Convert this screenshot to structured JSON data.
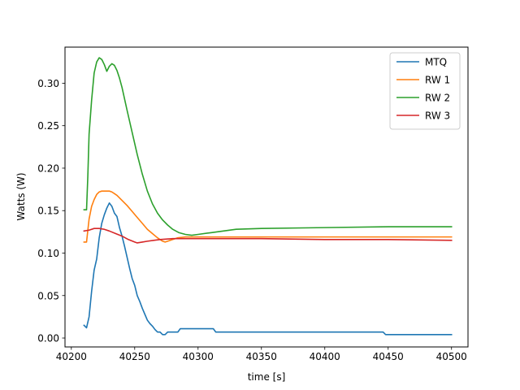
{
  "chart_data": {
    "type": "line",
    "title": "",
    "xlabel": "time [s]",
    "ylabel": "Watts (W)",
    "xlim": [
      40195,
      40513
    ],
    "ylim": [
      -0.0105,
      0.3425
    ],
    "xticks": [
      40200,
      40250,
      40300,
      40350,
      40400,
      40450,
      40500
    ],
    "xtick_labels": [
      "40200",
      "40250",
      "40300",
      "40350",
      "40400",
      "40450",
      "40500"
    ],
    "yticks": [
      0.0,
      0.05,
      0.1,
      0.15,
      0.2,
      0.25,
      0.3
    ],
    "ytick_labels": [
      "0.00",
      "0.05",
      "0.10",
      "0.15",
      "0.20",
      "0.25",
      "0.30"
    ],
    "grid": false,
    "legend_position": "top-right",
    "series": [
      {
        "name": "MTQ",
        "color": "#1f77b4",
        "x": [
          40210,
          40212,
          40214,
          40216,
          40218,
          40220,
          40222,
          40224,
          40226,
          40228,
          40230,
          40232,
          40234,
          40236,
          40238,
          40240,
          40242,
          40244,
          40246,
          40248,
          40250,
          40252,
          40254,
          40256,
          40258,
          40260,
          40262,
          40264,
          40266,
          40268,
          40270,
          40272,
          40274,
          40276,
          40278,
          40280,
          40282,
          40284,
          40286,
          40288,
          40290,
          40300,
          40310,
          40312,
          40314,
          40316,
          40330,
          40350,
          40400,
          40446,
          40448,
          40450,
          40500
        ],
        "y": [
          0.015,
          0.012,
          0.025,
          0.055,
          0.08,
          0.093,
          0.118,
          0.135,
          0.145,
          0.153,
          0.159,
          0.155,
          0.147,
          0.143,
          0.13,
          0.12,
          0.108,
          0.095,
          0.082,
          0.07,
          0.062,
          0.05,
          0.043,
          0.035,
          0.028,
          0.021,
          0.017,
          0.014,
          0.01,
          0.007,
          0.007,
          0.004,
          0.004,
          0.007,
          0.007,
          0.007,
          0.007,
          0.007,
          0.011,
          0.011,
          0.011,
          0.011,
          0.011,
          0.011,
          0.007,
          0.007,
          0.007,
          0.007,
          0.007,
          0.007,
          0.004,
          0.004,
          0.004
        ]
      },
      {
        "name": "RW 1",
        "color": "#ff7f0e",
        "x": [
          40210,
          40212,
          40214,
          40216,
          40218,
          40220,
          40222,
          40224,
          40226,
          40228,
          40230,
          40232,
          40234,
          40236,
          40238,
          40240,
          40244,
          40248,
          40252,
          40256,
          40260,
          40264,
          40268,
          40272,
          40274,
          40276,
          40280,
          40284,
          40290,
          40300,
          40350,
          40400,
          40450,
          40500
        ],
        "y": [
          0.113,
          0.113,
          0.14,
          0.155,
          0.163,
          0.169,
          0.172,
          0.173,
          0.173,
          0.173,
          0.173,
          0.172,
          0.17,
          0.168,
          0.165,
          0.162,
          0.156,
          0.149,
          0.142,
          0.135,
          0.128,
          0.123,
          0.118,
          0.114,
          0.113,
          0.114,
          0.116,
          0.118,
          0.119,
          0.119,
          0.119,
          0.119,
          0.119,
          0.119
        ]
      },
      {
        "name": "RW 2",
        "color": "#2ca02c",
        "x": [
          40210,
          40212,
          40213,
          40214,
          40216,
          40218,
          40220,
          40222,
          40224,
          40226,
          40228,
          40230,
          40232,
          40234,
          40236,
          40238,
          40240,
          40244,
          40248,
          40252,
          40256,
          40260,
          40264,
          40268,
          40272,
          40276,
          40280,
          40285,
          40290,
          40295,
          40300,
          40310,
          40320,
          40330,
          40350,
          40400,
          40450,
          40500
        ],
        "y": [
          0.151,
          0.151,
          0.19,
          0.24,
          0.28,
          0.312,
          0.325,
          0.33,
          0.328,
          0.322,
          0.314,
          0.32,
          0.323,
          0.321,
          0.315,
          0.306,
          0.295,
          0.268,
          0.242,
          0.216,
          0.193,
          0.173,
          0.158,
          0.147,
          0.139,
          0.133,
          0.128,
          0.124,
          0.122,
          0.121,
          0.122,
          0.124,
          0.126,
          0.128,
          0.129,
          0.13,
          0.131,
          0.131
        ]
      },
      {
        "name": "RW 3",
        "color": "#d62728",
        "x": [
          40210,
          40214,
          40218,
          40222,
          40226,
          40230,
          40235,
          40240,
          40245,
          40250,
          40252,
          40256,
          40260,
          40265,
          40270,
          40280,
          40290,
          40300,
          40350,
          40400,
          40450,
          40500
        ],
        "y": [
          0.126,
          0.127,
          0.129,
          0.129,
          0.128,
          0.126,
          0.123,
          0.12,
          0.116,
          0.113,
          0.112,
          0.113,
          0.114,
          0.115,
          0.116,
          0.117,
          0.117,
          0.117,
          0.117,
          0.116,
          0.116,
          0.115
        ]
      }
    ]
  }
}
